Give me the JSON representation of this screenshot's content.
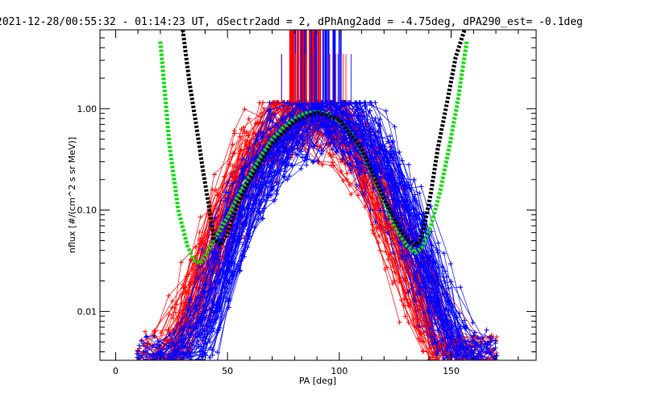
{
  "chart_data": {
    "type": "scatter",
    "title": "2021-12-28/00:55:32 - 01:14:23 UT, dSectr2add = 2, dPhAng2add = -4.75deg, dPA290_est=  -0.1deg",
    "xlabel": "PA [deg]",
    "ylabel": "nflux [#/(cm^2 s sr MeV)]",
    "xlim": [
      -7,
      188
    ],
    "ylim": [
      0.0033,
      6.0
    ],
    "yscale": "log",
    "x_ticks": [
      0,
      50,
      100,
      150
    ],
    "y_ticks": [
      0.01,
      0.1,
      1.0
    ],
    "x_tick_labels": [
      "0",
      "50",
      "100",
      "150"
    ],
    "y_tick_labels": [
      "0.01",
      "0.10",
      "1.00"
    ],
    "grid": false,
    "legend": "none",
    "colors": {
      "red": "#ff0000",
      "blue": "#0000ff",
      "green": "#00e000",
      "black": "#000000"
    },
    "series": [
      {
        "color": "green",
        "style": "thick-dashed",
        "x": [
          20,
          24,
          28,
          32,
          35,
          38,
          42,
          46,
          50,
          55,
          60,
          65,
          70,
          75,
          80,
          85,
          90,
          95,
          100,
          105,
          110,
          115,
          120,
          125,
          130,
          134,
          137,
          141,
          145,
          149,
          153,
          157
        ],
        "y": [
          4.6,
          0.45,
          0.1,
          0.045,
          0.032,
          0.03,
          0.042,
          0.06,
          0.085,
          0.14,
          0.22,
          0.34,
          0.5,
          0.65,
          0.8,
          0.9,
          0.93,
          0.88,
          0.75,
          0.58,
          0.38,
          0.22,
          0.12,
          0.068,
          0.045,
          0.038,
          0.043,
          0.07,
          0.15,
          0.4,
          1.2,
          4.6
        ]
      },
      {
        "color": "black",
        "style": "thick-dashed",
        "x": [
          30,
          33,
          36,
          39,
          42,
          44,
          47,
          50,
          55,
          60,
          70,
          80,
          90,
          100,
          110,
          120,
          125,
          128,
          131,
          134,
          136,
          138,
          141,
          144,
          148,
          152,
          156
        ],
        "y": [
          6.0,
          1.8,
          0.7,
          0.25,
          0.1,
          0.052,
          0.045,
          0.06,
          0.12,
          0.2,
          0.45,
          0.75,
          0.92,
          0.78,
          0.4,
          0.13,
          0.08,
          0.06,
          0.05,
          0.045,
          0.05,
          0.07,
          0.15,
          0.4,
          1.1,
          3.2,
          6.0
        ]
      }
    ],
    "envelope_note": "Hundreds of red and blue measurement traces (line + plus markers) spanning PA 10-172 deg, peaking near 1.0 around PA 85-95 deg and falling to ~0.003-0.03 at PA 20-40 and 140-170 deg."
  }
}
